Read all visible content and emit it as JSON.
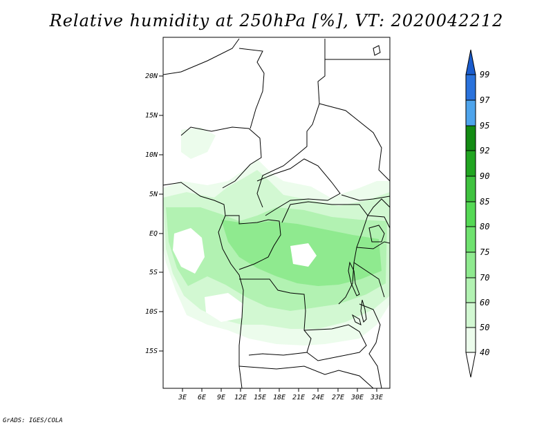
{
  "title": "Relative humidity at 250hPa [%], VT: 2020042212",
  "credit": "GrADS: IGES/COLA",
  "map": {
    "lat_labels": [
      "20N",
      "15N",
      "10N",
      "5N",
      "EQ",
      "5S",
      "10S",
      "15S"
    ],
    "lon_labels": [
      "3E",
      "6E",
      "9E",
      "12E",
      "15E",
      "18E",
      "21E",
      "24E",
      "27E",
      "30E",
      "33E"
    ]
  },
  "colorbar": {
    "levels": [
      "99",
      "97",
      "95",
      "92",
      "90",
      "85",
      "80",
      "75",
      "70",
      "60",
      "50",
      "40"
    ],
    "colors": {
      "over": "#1a5ccd",
      "c97_99": "#2a72dc",
      "c95_97": "#4ea4ec",
      "c92_95": "#138b13",
      "c90_92": "#21a521",
      "c85_90": "#3fc23f",
      "c80_85": "#55d955",
      "c75_80": "#6fe26f",
      "c70_75": "#8fea8f",
      "c60_70": "#b2f2b2",
      "c50_60": "#d2f8d2",
      "c40_50": "#ecfcec",
      "under": "#ffffff"
    }
  }
}
